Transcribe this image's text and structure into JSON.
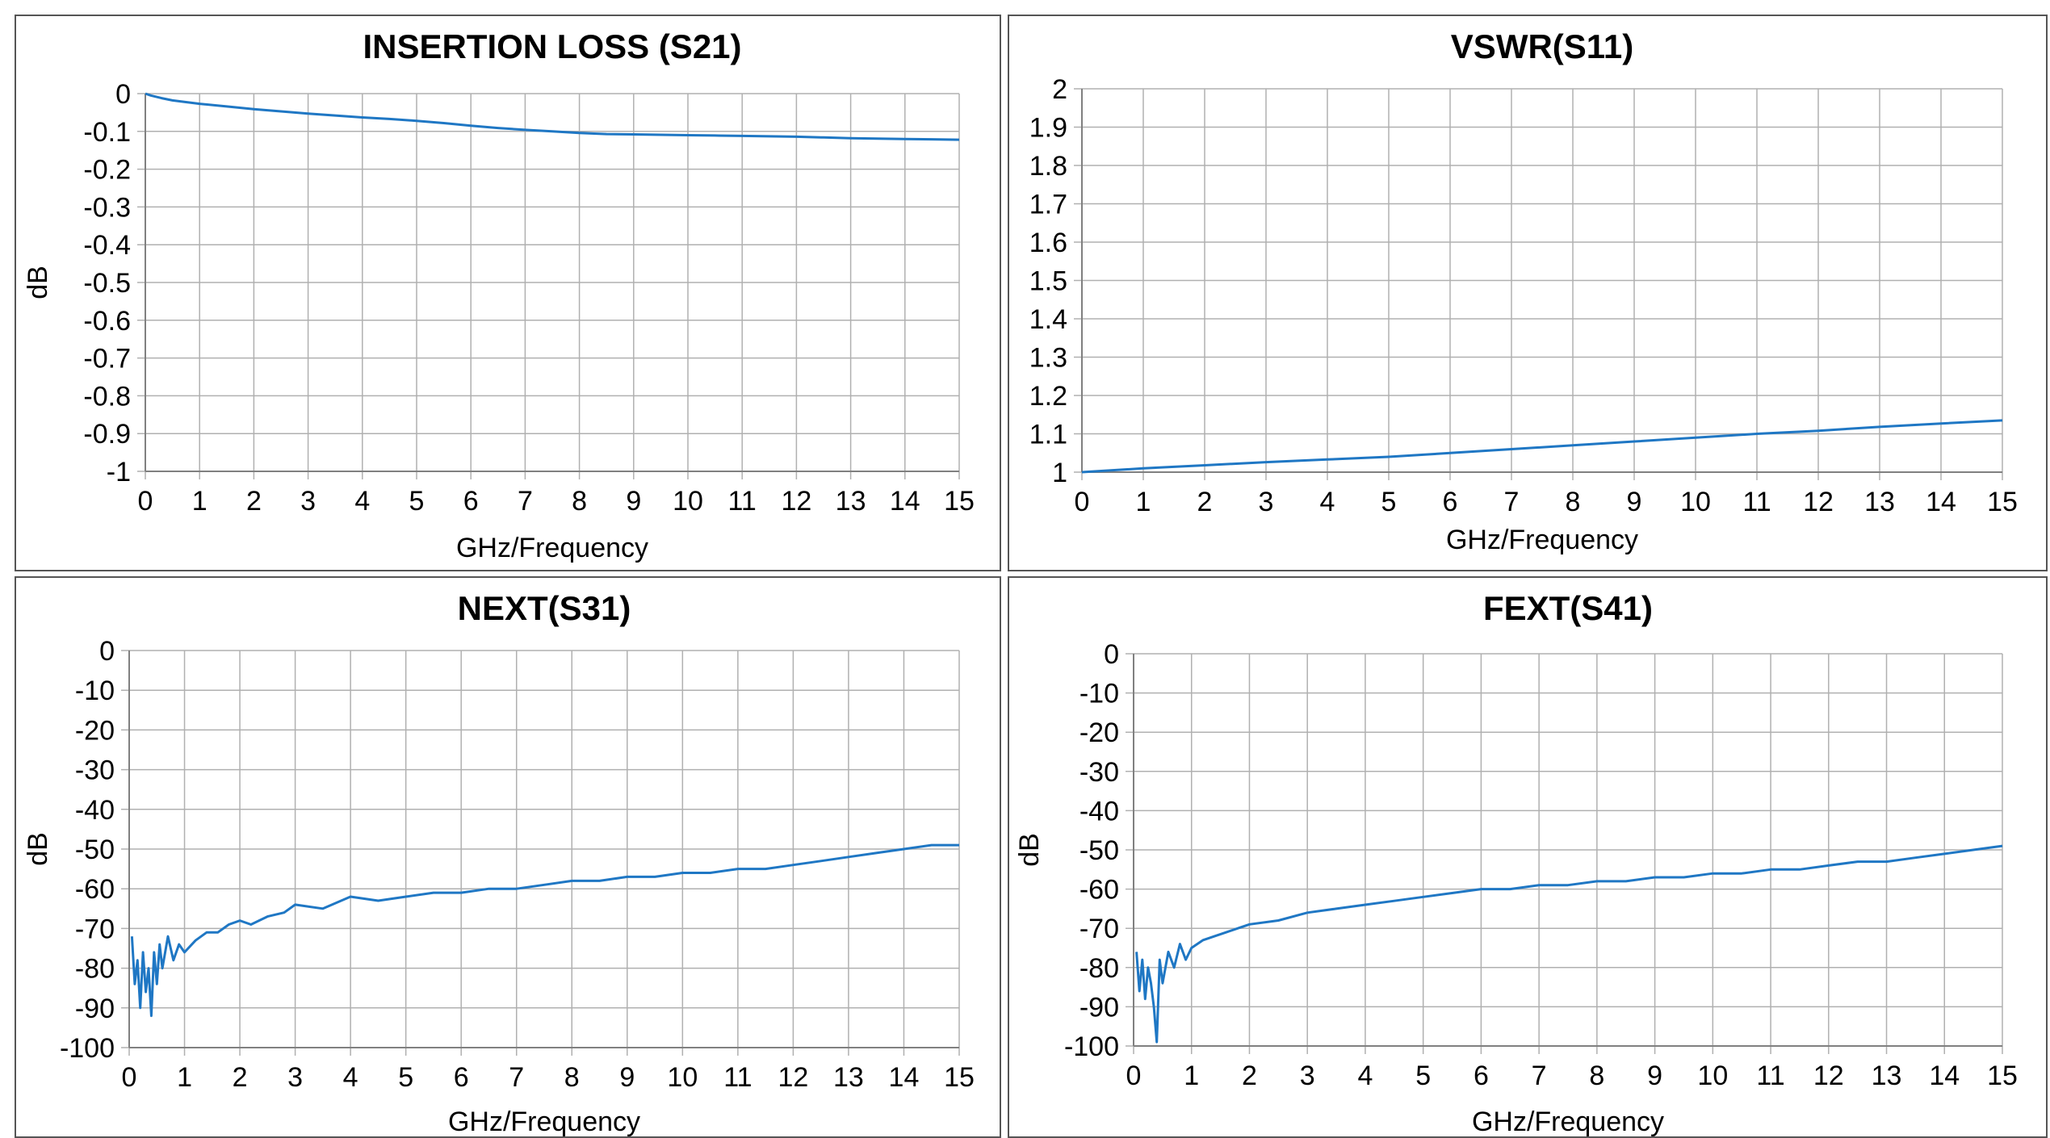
{
  "colors": {
    "series": "#1f77c4",
    "grid": "#b0b0b0",
    "axis": "#808080",
    "border": "#555555"
  },
  "chart_data": [
    {
      "type": "line",
      "title": "INSERTION LOSS (S21)",
      "xlabel": "GHz/Frequency",
      "ylabel": "dB",
      "xlim": [
        0,
        15
      ],
      "ylim": [
        -1,
        0
      ],
      "xticks": [
        "0",
        "1",
        "2",
        "3",
        "4",
        "5",
        "6",
        "7",
        "8",
        "9",
        "10",
        "11",
        "12",
        "13",
        "14",
        "15"
      ],
      "yticks": [
        "0",
        "-0.1",
        "-0.2",
        "-0.3",
        "-0.4",
        "-0.5",
        "-0.6",
        "-0.7",
        "-0.8",
        "-0.9",
        "-1"
      ],
      "grid": true,
      "series": [
        {
          "x": [
            0,
            0.1,
            0.3,
            0.5,
            1,
            1.5,
            2,
            2.5,
            3,
            3.5,
            4,
            4.5,
            5,
            5.5,
            6,
            6.5,
            7,
            7.5,
            8,
            8.5,
            9,
            9.5,
            10,
            10.5,
            11,
            11.5,
            12,
            12.5,
            13,
            13.5,
            14,
            14.5,
            15
          ],
          "values": [
            0,
            -0.005,
            -0.012,
            -0.018,
            -0.027,
            -0.034,
            -0.041,
            -0.047,
            -0.053,
            -0.058,
            -0.063,
            -0.067,
            -0.072,
            -0.078,
            -0.085,
            -0.091,
            -0.096,
            -0.1,
            -0.104,
            -0.107,
            -0.108,
            -0.109,
            -0.11,
            -0.111,
            -0.112,
            -0.113,
            -0.114,
            -0.116,
            -0.118,
            -0.119,
            -0.12,
            -0.121,
            -0.122
          ]
        }
      ]
    },
    {
      "type": "line",
      "title": "VSWR(S11)",
      "xlabel": "GHz/Frequency",
      "ylabel": "",
      "xlim": [
        0,
        15
      ],
      "ylim": [
        1,
        2
      ],
      "xticks": [
        "0",
        "1",
        "2",
        "3",
        "4",
        "5",
        "6",
        "7",
        "8",
        "9",
        "10",
        "11",
        "12",
        "13",
        "14",
        "15"
      ],
      "yticks": [
        "2",
        "1.9",
        "1.8",
        "1.7",
        "1.6",
        "1.5",
        "1.4",
        "1.3",
        "1.2",
        "1.1",
        "1"
      ],
      "grid": true,
      "series": [
        {
          "x": [
            0,
            1,
            2,
            3,
            4,
            5,
            6,
            7,
            8,
            9,
            10,
            11,
            12,
            13,
            14,
            15
          ],
          "values": [
            1.0,
            1.01,
            1.018,
            1.026,
            1.033,
            1.04,
            1.05,
            1.06,
            1.07,
            1.08,
            1.09,
            1.1,
            1.108,
            1.118,
            1.127,
            1.135
          ]
        }
      ]
    },
    {
      "type": "line",
      "title": "NEXT(S31)",
      "xlabel": "GHz/Frequency",
      "ylabel": "dB",
      "xlim": [
        0,
        15
      ],
      "ylim": [
        -100,
        0
      ],
      "xticks": [
        "0",
        "1",
        "2",
        "3",
        "4",
        "5",
        "6",
        "7",
        "8",
        "9",
        "10",
        "11",
        "12",
        "13",
        "14",
        "15"
      ],
      "yticks": [
        "0",
        "-10",
        "-20",
        "-30",
        "-40",
        "-50",
        "-60",
        "-70",
        "-80",
        "-90",
        "-100"
      ],
      "grid": true,
      "series": [
        {
          "x": [
            0.05,
            0.1,
            0.15,
            0.2,
            0.25,
            0.3,
            0.35,
            0.4,
            0.45,
            0.5,
            0.55,
            0.6,
            0.7,
            0.8,
            0.9,
            1,
            1.2,
            1.4,
            1.6,
            1.8,
            2,
            2.2,
            2.5,
            2.8,
            3,
            3.5,
            4,
            4.5,
            5,
            5.5,
            6,
            6.5,
            7,
            7.5,
            8,
            8.5,
            9,
            9.5,
            10,
            10.5,
            11,
            11.5,
            12,
            12.5,
            13,
            13.5,
            14,
            14.5,
            15
          ],
          "values": [
            -72,
            -84,
            -78,
            -90,
            -76,
            -86,
            -80,
            -92,
            -76,
            -84,
            -74,
            -80,
            -72,
            -78,
            -74,
            -76,
            -73,
            -71,
            -71,
            -69,
            -68,
            -69,
            -67,
            -66,
            -64,
            -65,
            -62,
            -63,
            -62,
            -61,
            -61,
            -60,
            -60,
            -59,
            -58,
            -58,
            -57,
            -57,
            -56,
            -56,
            -55,
            -55,
            -54,
            -53,
            -52,
            -51,
            -50,
            -49,
            -49
          ]
        }
      ]
    },
    {
      "type": "line",
      "title": "FEXT(S41)",
      "xlabel": "GHz/Frequency",
      "ylabel": "dB",
      "xlim": [
        0,
        15
      ],
      "ylim": [
        -100,
        0
      ],
      "xticks": [
        "0",
        "1",
        "2",
        "3",
        "4",
        "5",
        "6",
        "7",
        "8",
        "9",
        "10",
        "11",
        "12",
        "13",
        "14",
        "15"
      ],
      "yticks": [
        "0",
        "-10",
        "-20",
        "-30",
        "-40",
        "-50",
        "-60",
        "-70",
        "-80",
        "-90",
        "-100"
      ],
      "grid": true,
      "series": [
        {
          "x": [
            0.05,
            0.1,
            0.15,
            0.2,
            0.25,
            0.3,
            0.35,
            0.4,
            0.45,
            0.5,
            0.6,
            0.7,
            0.8,
            0.9,
            1,
            1.2,
            1.4,
            1.6,
            1.8,
            2,
            2.5,
            3,
            3.5,
            4,
            4.5,
            5,
            5.5,
            6,
            6.5,
            7,
            7.5,
            8,
            8.5,
            9,
            9.5,
            10,
            10.5,
            11,
            11.5,
            12,
            12.5,
            13,
            13.5,
            14,
            14.5,
            15
          ],
          "values": [
            -76,
            -86,
            -78,
            -88,
            -80,
            -84,
            -90,
            -99,
            -78,
            -84,
            -76,
            -80,
            -74,
            -78,
            -75,
            -73,
            -72,
            -71,
            -70,
            -69,
            -68,
            -66,
            -65,
            -64,
            -63,
            -62,
            -61,
            -60,
            -60,
            -59,
            -59,
            -58,
            -58,
            -57,
            -57,
            -56,
            -56,
            -55,
            -55,
            -54,
            -53,
            -53,
            -52,
            -51,
            -50,
            -49
          ]
        }
      ]
    }
  ]
}
